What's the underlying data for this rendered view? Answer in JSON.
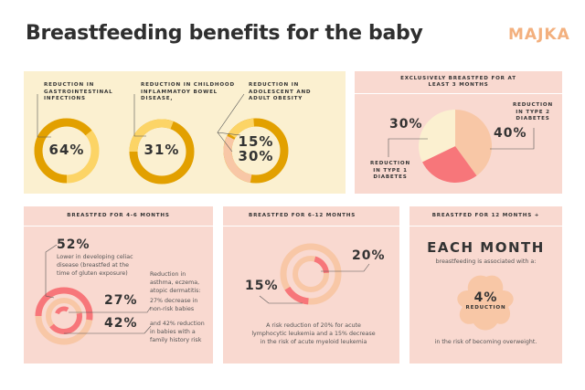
{
  "title": "Breastfeeding benefits for the baby",
  "logo": "MAJKA",
  "colors": {
    "dark_yellow": "#e2a000",
    "light_yellow": "#fcd466",
    "peach": "#f8c7a6",
    "coral": "#f7767a",
    "cream": "#fbf0d0",
    "pink_bg": "#f9d9d0"
  },
  "panel1": {
    "items": [
      {
        "label": "REDUCTION IN GASTROINTESTINAL INFECTIONS",
        "value": "64%",
        "fraction": 0.64
      },
      {
        "label": "REDUCTION IN CHILDHOOD INFLAMMATOY BOWEL DISEASE,",
        "value": "31%",
        "fraction": 0.31
      },
      {
        "label": "REDUCTION IN ADOLESCENT AND ADULT OBESITY",
        "value1": "15%",
        "value2": "30%"
      }
    ]
  },
  "panel2": {
    "header": "EXCLUSIVELY BREASTFED FOR AT LEAST 3 MONTHS",
    "type1": {
      "value": "30%",
      "label": "REDUCTION IN TYPE 1 DIABETES"
    },
    "type2": {
      "value": "40%",
      "label": "REDUCTION IN TYPE 2 DIABETES"
    },
    "slices": [
      40,
      30,
      30
    ]
  },
  "panel3": {
    "header": "BREASTFED FOR 4-6 MONTHS",
    "celiac_value": "52%",
    "celiac_text": "Lower in developing celiac disease (breastfed at the time of gluten exposure)",
    "asthma_intro": "Reduction in asthma, eczema, atopic dermatitis:",
    "v27": "27%",
    "t27": "27% decrease in non-risk babies",
    "v42": "42%",
    "t42": "and 42% reduction in babies with a family history risk"
  },
  "panel4": {
    "header": "BREASTFED FOR 6-12 MONTHS",
    "v20": "20%",
    "v15": "15%",
    "text": "A risk reduction of 20% for acute lymphocytic leukemia and a 15% decrease in the risk of acute myeloid leukemia"
  },
  "panel5": {
    "header": "BREASTFED FOR 12 MONTHS +",
    "headline": "EACH MONTH",
    "sub": "breastfeeding is associated with a:",
    "value": "4%",
    "value_label": "REDUCTION",
    "footer": "in the risk of becoming overweight."
  }
}
